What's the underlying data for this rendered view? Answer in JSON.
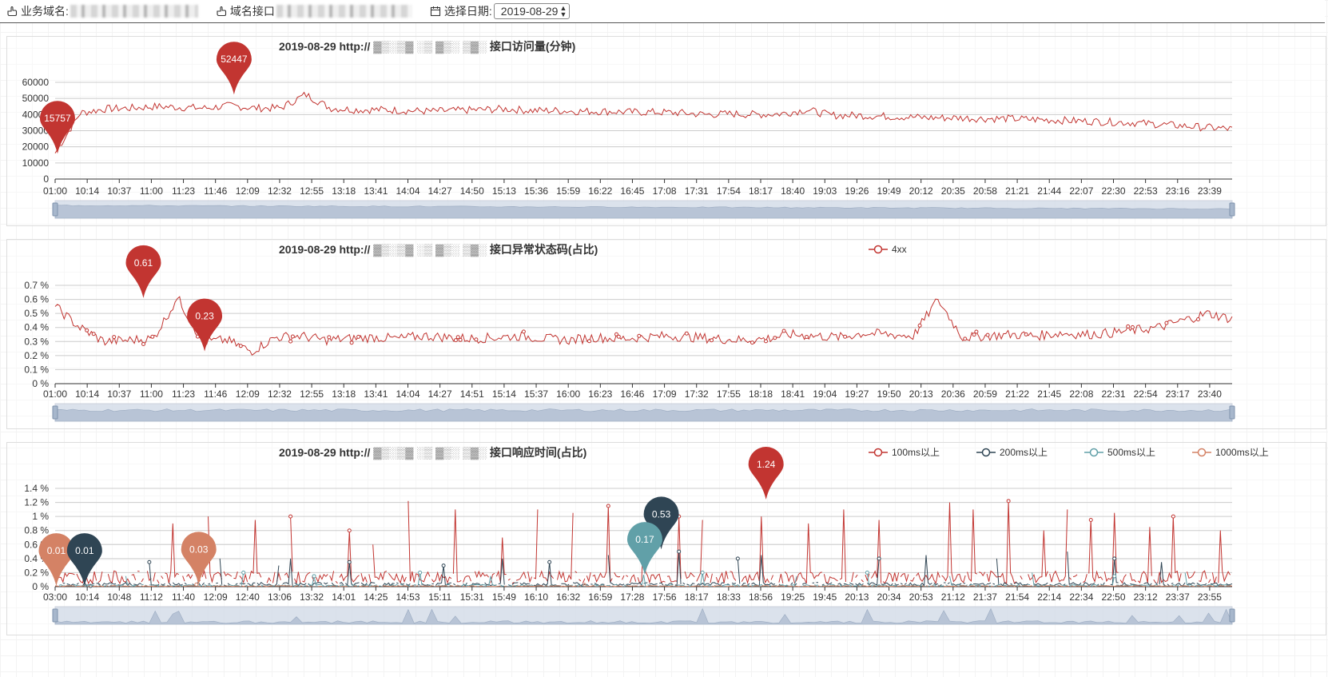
{
  "filters": {
    "domain_label": "业务域名:",
    "api_label": "域名接口",
    "date_label": "选择日期:",
    "date_value": "2019-08-29"
  },
  "colors": {
    "red": "#c23531",
    "navy": "#2f4554",
    "teal": "#61a0a8",
    "orange": "#d48265",
    "grid": "#cccccc",
    "slider_fill": "#d0d9e6"
  },
  "charts": [
    {
      "title_prefix": "2019-08-29 http://",
      "title_suffix": "接口访问量(分钟)",
      "chart_data": {
        "type": "line",
        "yticks": [
          "60000",
          "50000",
          "40000",
          "30000",
          "20000",
          "10000",
          "0"
        ],
        "ylim": [
          0,
          60000
        ],
        "xticks": [
          "01:00",
          "10:14",
          "10:37",
          "11:00",
          "11:23",
          "11:46",
          "12:09",
          "12:32",
          "12:55",
          "13:18",
          "13:41",
          "14:04",
          "14:27",
          "14:50",
          "15:13",
          "15:36",
          "15:59",
          "16:22",
          "16:45",
          "17:08",
          "17:31",
          "17:54",
          "18:17",
          "18:40",
          "19:03",
          "19:26",
          "19:49",
          "20:12",
          "20:35",
          "20:58",
          "21:21",
          "21:44",
          "22:07",
          "22:30",
          "22:53",
          "23:16",
          "23:39"
        ],
        "series": [
          {
            "name": "",
            "color": "red",
            "values": [
              16000,
              41000,
              43500,
              44000,
              45000,
              44500,
              44000,
              45500,
              44000,
              44000,
              52447,
              44000,
              43000,
              43000,
              42500,
              42000,
              42500,
              43000,
              43500,
              42500,
              42500,
              42000,
              42000,
              41500,
              41500,
              41000,
              40000,
              40500,
              40000,
              40500,
              43000,
              39500,
              39500,
              39000,
              38500,
              38000,
              38000,
              37500,
              37500,
              37000,
              36500,
              36000,
              35500,
              35000,
              34000,
              33000,
              32000,
              31000
            ]
          }
        ],
        "markers": [
          {
            "label": "15757",
            "xi": 0.002,
            "value": 15757,
            "color": "red"
          },
          {
            "label": "52447",
            "xi": 0.152,
            "value": 52447,
            "color": "red"
          }
        ]
      }
    },
    {
      "title_prefix": "2019-08-29 http://",
      "title_suffix": "接口异常状态码(占比)",
      "legend": [
        "4xx"
      ],
      "chart_data": {
        "type": "line",
        "yticks": [
          "0.7 %",
          "0.6 %",
          "0.5 %",
          "0.4 %",
          "0.3 %",
          "0.2 %",
          "0.1 %",
          "0 %"
        ],
        "ylim": [
          0,
          0.7
        ],
        "xticks": [
          "01:00",
          "10:14",
          "10:37",
          "11:00",
          "11:23",
          "11:46",
          "12:09",
          "12:32",
          "12:55",
          "13:18",
          "13:41",
          "14:04",
          "14:27",
          "14:51",
          "15:14",
          "15:37",
          "16:00",
          "16:23",
          "16:46",
          "17:09",
          "17:32",
          "17:55",
          "18:18",
          "18:41",
          "19:04",
          "19:27",
          "19:50",
          "20:13",
          "20:36",
          "20:59",
          "21:22",
          "21:45",
          "22:08",
          "22:31",
          "22:54",
          "23:17",
          "23:40"
        ],
        "series": [
          {
            "name": "4xx",
            "color": "red",
            "values": [
              0.55,
              0.4,
              0.3,
              0.31,
              0.32,
              0.61,
              0.3,
              0.31,
              0.23,
              0.33,
              0.34,
              0.31,
              0.32,
              0.33,
              0.32,
              0.34,
              0.33,
              0.32,
              0.33,
              0.34,
              0.32,
              0.31,
              0.33,
              0.32,
              0.33,
              0.34,
              0.33,
              0.32,
              0.31,
              0.32,
              0.35,
              0.34,
              0.33,
              0.36,
              0.35,
              0.34,
              0.6,
              0.33,
              0.34,
              0.35,
              0.34,
              0.36,
              0.35,
              0.36,
              0.38,
              0.4,
              0.45,
              0.5,
              0.46
            ]
          }
        ],
        "markers": [
          {
            "label": "0.61",
            "xi": 0.075,
            "value": 0.61,
            "color": "red"
          },
          {
            "label": "0.23",
            "xi": 0.127,
            "value": 0.23,
            "color": "red"
          }
        ]
      }
    },
    {
      "title_prefix": "2019-08-29 http://",
      "title_suffix": "接口响应时间(占比)",
      "legend": [
        "100ms以上",
        "200ms以上",
        "500ms以上",
        "1000ms以上"
      ],
      "chart_data": {
        "type": "line",
        "yticks": [
          "1.4 %",
          "1.2 %",
          "1 %",
          "0.8 %",
          "0.6 %",
          "0.4 %",
          "0.2 %",
          "0 %"
        ],
        "ylim": [
          0,
          1.4
        ],
        "xticks": [
          "03:00",
          "10:14",
          "10:48",
          "11:12",
          "11:40",
          "12:09",
          "12:40",
          "13:06",
          "13:32",
          "14:01",
          "14:25",
          "14:53",
          "15:11",
          "15:31",
          "15:49",
          "16:10",
          "16:32",
          "16:59",
          "17:28",
          "17:56",
          "18:17",
          "18:33",
          "18:56",
          "19:25",
          "19:45",
          "20:13",
          "20:34",
          "20:53",
          "21:12",
          "21:37",
          "21:54",
          "22:14",
          "22:34",
          "22:50",
          "23:12",
          "23:37",
          "23:55"
        ],
        "series": [
          {
            "name": "100ms以上",
            "color": "red",
            "spikes": [
              [
                0.1,
                0.9
              ],
              [
                0.13,
                1.0
              ],
              [
                0.17,
                0.95
              ],
              [
                0.2,
                1.0
              ],
              [
                0.25,
                0.8
              ],
              [
                0.27,
                0.6
              ],
              [
                0.3,
                1.22
              ],
              [
                0.34,
                1.1
              ],
              [
                0.38,
                0.7
              ],
              [
                0.41,
                1.1
              ],
              [
                0.44,
                1.05
              ],
              [
                0.47,
                1.15
              ],
              [
                0.5,
                0.85
              ],
              [
                0.53,
                1.0
              ],
              [
                0.55,
                0.95
              ],
              [
                0.58,
                0.8
              ],
              [
                0.6,
                1.0
              ],
              [
                0.64,
                0.9
              ],
              [
                0.67,
                1.1
              ],
              [
                0.7,
                0.95
              ],
              [
                0.76,
                1.2
              ],
              [
                0.78,
                1.1
              ],
              [
                0.81,
                1.22
              ],
              [
                0.84,
                0.8
              ],
              [
                0.86,
                1.1
              ],
              [
                0.88,
                0.95
              ],
              [
                0.9,
                1.05
              ],
              [
                0.93,
                0.85
              ],
              [
                0.95,
                1.0
              ],
              [
                0.97,
                0.9
              ],
              [
                0.99,
                0.8
              ]
            ],
            "base": 0.15
          },
          {
            "name": "200ms以上",
            "color": "navy",
            "spikes": [
              [
                0.03,
                0.01
              ],
              [
                0.08,
                0.35
              ],
              [
                0.14,
                0.4
              ],
              [
                0.19,
                0.3
              ],
              [
                0.2,
                0.4
              ],
              [
                0.25,
                0.35
              ],
              [
                0.33,
                0.3
              ],
              [
                0.38,
                0.4
              ],
              [
                0.42,
                0.35
              ],
              [
                0.47,
                0.45
              ],
              [
                0.53,
                0.5
              ],
              [
                0.58,
                0.4
              ],
              [
                0.6,
                0.45
              ],
              [
                0.64,
                0.35
              ],
              [
                0.7,
                0.4
              ],
              [
                0.74,
                0.45
              ],
              [
                0.8,
                0.4
              ],
              [
                0.86,
                0.5
              ],
              [
                0.9,
                0.4
              ],
              [
                0.94,
                0.35
              ],
              [
                0.98,
                0.4
              ]
            ],
            "base": 0.04
          },
          {
            "name": "500ms以上",
            "color": "teal",
            "spikes": [
              [
                0.06,
                0.15
              ],
              [
                0.16,
                0.2
              ],
              [
                0.22,
                0.15
              ],
              [
                0.31,
                0.2
              ],
              [
                0.37,
                0.15
              ],
              [
                0.5,
                0.17
              ],
              [
                0.55,
                0.2
              ],
              [
                0.63,
                0.15
              ],
              [
                0.69,
                0.2
              ],
              [
                0.76,
                0.15
              ],
              [
                0.83,
                0.2
              ],
              [
                0.9,
                0.15
              ],
              [
                0.96,
                0.2
              ]
            ],
            "base": 0.02
          },
          {
            "name": "1000ms以上",
            "color": "orange",
            "spikes": [
              [
                0.12,
                0.03
              ],
              [
                0.45,
                0.05
              ]
            ],
            "base": 0.01
          }
        ],
        "markers": [
          {
            "label": "0.01",
            "xi": 0.001,
            "value": 0.01,
            "color": "orange"
          },
          {
            "label": "0.01",
            "xi": 0.025,
            "value": 0.01,
            "color": "navy"
          },
          {
            "label": "0.03",
            "xi": 0.122,
            "value": 0.03,
            "color": "orange"
          },
          {
            "label": "0.53",
            "xi": 0.515,
            "value": 0.53,
            "color": "navy"
          },
          {
            "label": "0.17",
            "xi": 0.501,
            "value": 0.17,
            "color": "teal"
          },
          {
            "label": "1.24",
            "xi": 0.604,
            "value": 1.24,
            "color": "red"
          }
        ]
      }
    }
  ]
}
